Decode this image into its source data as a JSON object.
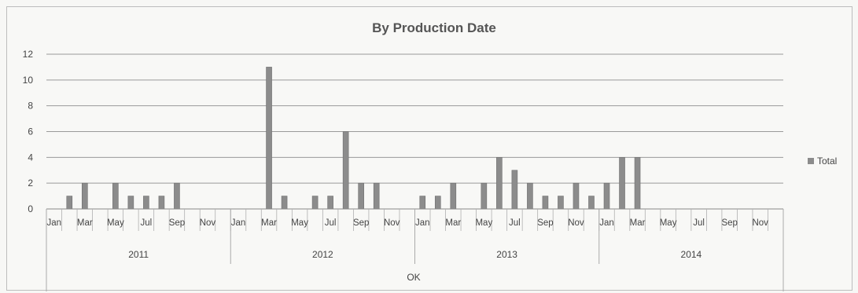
{
  "chart_data": {
    "type": "bar",
    "title": "By Production Date",
    "xlabel": "",
    "ylabel": "",
    "ylim": [
      0,
      12
    ],
    "yticks": [
      0,
      2,
      4,
      6,
      8,
      10,
      12
    ],
    "grid": true,
    "legend_position": "right",
    "filter_label": "OK",
    "years": [
      {
        "label": "2011",
        "months": 12
      },
      {
        "label": "2012",
        "months": 12
      },
      {
        "label": "2013",
        "months": 12
      },
      {
        "label": "2014",
        "months": 12
      }
    ],
    "month_tick_labels": [
      "Jan",
      "Mar",
      "May",
      "Jul",
      "Sep",
      "Nov"
    ],
    "series": [
      {
        "name": "Total",
        "color": "#8c8c8c",
        "values": [
          0,
          1,
          2,
          0,
          2,
          1,
          1,
          1,
          2,
          0,
          0,
          0,
          0,
          0,
          11,
          1,
          0,
          1,
          1,
          6,
          2,
          2,
          0,
          0,
          1,
          1,
          2,
          0,
          2,
          4,
          3,
          2,
          1,
          1,
          2,
          1,
          2,
          4,
          4,
          0,
          0,
          0,
          0,
          0,
          0,
          0,
          0,
          0
        ]
      }
    ]
  }
}
